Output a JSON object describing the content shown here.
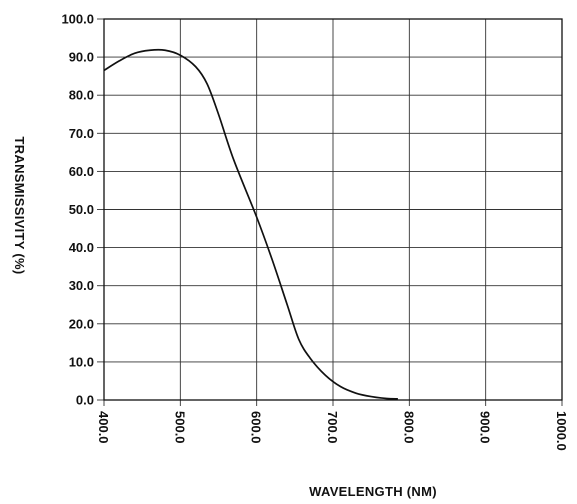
{
  "chart_data": {
    "type": "line",
    "xlabel": "WAVELENGTH (NM)",
    "ylabel": "TRANSMISSIVITY (%)",
    "xlim": [
      400,
      1000
    ],
    "ylim": [
      0,
      100
    ],
    "x_ticks": [
      "400.0",
      "500.0",
      "600.0",
      "700.0",
      "800.0",
      "900.0",
      "1000.0"
    ],
    "y_ticks": [
      "0.0",
      "10.0",
      "20.0",
      "30.0",
      "40.0",
      "50.0",
      "60.0",
      "70.0",
      "80.0",
      "90.0",
      "100.0"
    ],
    "grid": true,
    "series": [
      {
        "x": [
          400,
          420,
          440,
          460,
          480,
          500,
          520,
          535,
          550,
          570,
          600,
          620,
          640,
          655,
          670,
          690,
          710,
          730,
          750,
          770,
          785
        ],
        "y": [
          86.5,
          89,
          91,
          91.8,
          91.8,
          90.5,
          87.5,
          83,
          75,
          63,
          48,
          37,
          25,
          16,
          11,
          6.5,
          3.5,
          1.8,
          0.9,
          0.4,
          0.3
        ]
      }
    ]
  }
}
